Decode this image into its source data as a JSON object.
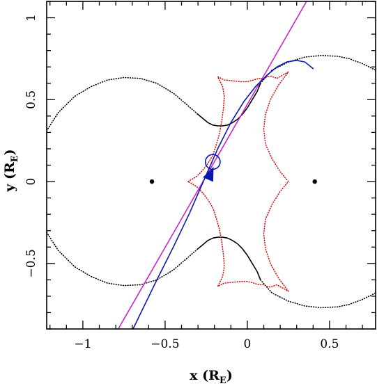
{
  "chart_data": {
    "type": "line",
    "title": "",
    "xlabel": {
      "main": "x (R",
      "sub": "E",
      "close": ")"
    },
    "ylabel": {
      "main": "y (R",
      "sub": "E",
      "close": ")"
    },
    "xlim": [
      -1.22,
      0.78
    ],
    "ylim": [
      -0.9,
      1.1
    ],
    "xticks": [
      -1,
      -0.5,
      0,
      0.5
    ],
    "xtick_labels": [
      "−1",
      "−0.5",
      "0",
      "0.5"
    ],
    "yticks": [
      -0.5,
      0,
      0.5,
      1
    ],
    "ytick_labels": [
      "−0.5",
      "0",
      "0.5",
      "1"
    ],
    "grid": false,
    "legend": "none",
    "colors": {
      "critical_curve": "#000000",
      "caustic": "#d41414",
      "trajectory": "#0b18b0",
      "straight_line": "#cc22cc"
    },
    "points": [
      {
        "name": "lens 1",
        "x": -0.58,
        "y": 0.0
      },
      {
        "name": "lens 2",
        "x": 0.41,
        "y": 0.0
      }
    ],
    "source_circle": {
      "x": -0.21,
      "y": 0.12,
      "r": 0.045
    },
    "series": [
      {
        "style": "dotted",
        "color": "critical_curve",
        "x": [
          -1.22,
          -1.15,
          -1.05,
          -0.95,
          -0.85,
          -0.75,
          -0.65,
          -0.55,
          -0.45,
          -0.38,
          -0.3
        ],
        "y": [
          0.31,
          0.42,
          0.52,
          0.58,
          0.62,
          0.635,
          0.63,
          0.6,
          0.54,
          0.48,
          0.41
        ]
      },
      {
        "style": "solid",
        "color": "critical_curve",
        "x": [
          -0.3,
          -0.27,
          -0.24,
          -0.21,
          -0.18,
          -0.15,
          -0.12,
          -0.09,
          -0.06,
          -0.03,
          0.0,
          0.03,
          0.06,
          0.08
        ],
        "y": [
          0.41,
          0.385,
          0.36,
          0.345,
          0.34,
          0.34,
          0.345,
          0.36,
          0.38,
          0.41,
          0.45,
          0.5,
          0.55,
          0.6
        ]
      },
      {
        "style": "dotted",
        "color": "critical_curve",
        "x": [
          0.08,
          0.15,
          0.25,
          0.35,
          0.45,
          0.55,
          0.62,
          0.7,
          0.78
        ],
        "y": [
          0.6,
          0.68,
          0.73,
          0.76,
          0.77,
          0.765,
          0.75,
          0.72,
          0.68
        ]
      },
      {
        "style": "dotted",
        "color": "critical_curve",
        "x": [
          -1.22,
          -1.15,
          -1.05,
          -0.95,
          -0.85,
          -0.75,
          -0.65,
          -0.55,
          -0.45,
          -0.38,
          -0.3
        ],
        "y": [
          -0.31,
          -0.42,
          -0.52,
          -0.58,
          -0.62,
          -0.635,
          -0.63,
          -0.6,
          -0.54,
          -0.48,
          -0.41
        ]
      },
      {
        "style": "solid",
        "color": "critical_curve",
        "x": [
          -0.3,
          -0.27,
          -0.24,
          -0.21,
          -0.18,
          -0.15,
          -0.12,
          -0.09,
          -0.06,
          -0.03,
          0.0,
          0.03,
          0.06,
          0.08
        ],
        "y": [
          -0.41,
          -0.385,
          -0.36,
          -0.345,
          -0.34,
          -0.34,
          -0.345,
          -0.36,
          -0.38,
          -0.41,
          -0.45,
          -0.5,
          -0.55,
          -0.6
        ]
      },
      {
        "style": "dotted",
        "color": "critical_curve",
        "x": [
          0.08,
          0.15,
          0.25,
          0.35,
          0.45,
          0.55,
          0.62,
          0.7,
          0.78
        ],
        "y": [
          -0.6,
          -0.68,
          -0.73,
          -0.76,
          -0.77,
          -0.765,
          -0.75,
          -0.72,
          -0.68
        ]
      },
      {
        "style": "dotted",
        "color": "caustic",
        "x": [
          -0.36,
          -0.31,
          -0.27,
          -0.24,
          -0.21,
          -0.19,
          -0.17,
          -0.155,
          -0.145,
          -0.14,
          -0.15,
          -0.18,
          -0.14,
          -0.09,
          -0.04,
          0.0,
          0.04,
          0.07,
          0.1,
          0.12,
          0.14,
          0.18,
          0.25,
          0.19,
          0.14,
          0.11,
          0.1,
          0.11,
          0.15,
          0.2,
          0.25,
          0.2,
          0.15,
          0.11,
          0.1,
          0.11,
          0.14,
          0.19,
          0.25,
          0.18,
          0.14,
          0.12,
          0.1,
          0.07,
          0.04,
          0.0,
          -0.04,
          -0.09,
          -0.14,
          -0.18,
          -0.15,
          -0.14,
          -0.145,
          -0.155,
          -0.17,
          -0.19,
          -0.21,
          -0.24,
          -0.27,
          -0.31,
          -0.36
        ],
        "y": [
          0.0,
          0.03,
          0.07,
          0.11,
          0.16,
          0.22,
          0.29,
          0.37,
          0.45,
          0.52,
          0.58,
          0.64,
          0.62,
          0.615,
          0.61,
          0.61,
          0.62,
          0.63,
          0.63,
          0.64,
          0.645,
          0.63,
          0.67,
          0.59,
          0.5,
          0.41,
          0.32,
          0.23,
          0.14,
          0.06,
          0.0,
          -0.06,
          -0.14,
          -0.23,
          -0.32,
          -0.41,
          -0.5,
          -0.59,
          -0.67,
          -0.63,
          -0.645,
          -0.64,
          -0.63,
          -0.63,
          -0.62,
          -0.61,
          -0.61,
          -0.615,
          -0.62,
          -0.64,
          -0.58,
          -0.52,
          -0.45,
          -0.37,
          -0.29,
          -0.22,
          -0.16,
          -0.11,
          -0.07,
          -0.03,
          0.0
        ]
      },
      {
        "style": "solid",
        "color": "straight_line",
        "x": [
          -0.785,
          0.36
        ],
        "y": [
          -0.9,
          1.1
        ]
      },
      {
        "style": "solid",
        "color": "trajectory",
        "x": [
          -0.695,
          -0.55,
          -0.45,
          -0.35,
          -0.25,
          -0.18,
          -0.1,
          -0.02,
          0.05,
          0.12,
          0.18,
          0.24,
          0.3,
          0.35,
          0.4
        ],
        "y": [
          -0.9,
          -0.6,
          -0.4,
          -0.19,
          0.04,
          0.2,
          0.36,
          0.49,
          0.58,
          0.65,
          0.7,
          0.73,
          0.74,
          0.73,
          0.69
        ]
      }
    ]
  }
}
